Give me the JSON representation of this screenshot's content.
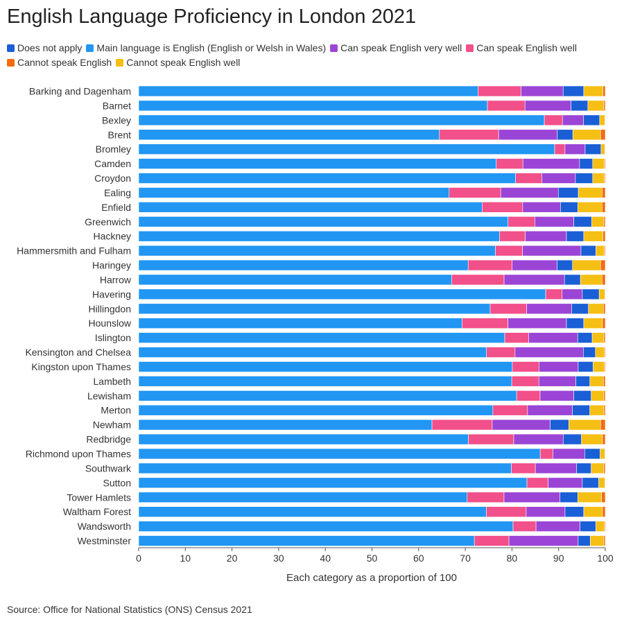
{
  "title": "English Language Proficiency in London 2021",
  "source": "Source: Office for National Statistics (ONS) Census 2021",
  "colors": {
    "text": "#333333",
    "axis": "#555555"
  },
  "chart_data": {
    "type": "bar",
    "orientation": "horizontal",
    "stacked": true,
    "title": "English Language Proficiency in London 2021",
    "xlabel": "Each category as a proportion of 100",
    "ylabel": "",
    "xlim": [
      0,
      100
    ],
    "xticks": [
      0,
      10,
      20,
      30,
      40,
      50,
      60,
      70,
      80,
      90,
      100
    ],
    "grid": false,
    "legend_position": "top",
    "legend_order": [
      "Does not apply",
      "Main language is English (English or Welsh in Wales)",
      "Can speak English very well",
      "Can speak English well",
      "Cannot speak English",
      "Cannot speak English well"
    ],
    "stack_order": [
      "Main language is English (English or Welsh in Wales)",
      "Can speak English well",
      "Can speak English very well",
      "Does not apply",
      "Cannot speak English well",
      "Cannot speak English"
    ],
    "series_colors": {
      "Does not apply": "#1a5fd6",
      "Main language is English (English or Welsh in Wales)": "#2196f3",
      "Can speak English very well": "#9b45d6",
      "Can speak English well": "#f2508a",
      "Cannot speak English": "#f56b0f",
      "Cannot speak English well": "#f5bf14"
    },
    "categories": [
      "Barking and Dagenham",
      "Barnet",
      "Bexley",
      "Brent",
      "Bromley",
      "Camden",
      "Croydon",
      "Ealing",
      "Enfield",
      "Greenwich",
      "Hackney",
      "Hammersmith and Fulham",
      "Haringey",
      "Harrow",
      "Havering",
      "Hillingdon",
      "Hounslow",
      "Islington",
      "Kensington and Chelsea",
      "Kingston upon Thames",
      "Lambeth",
      "Lewisham",
      "Merton",
      "Newham",
      "Redbridge",
      "Richmond upon Thames",
      "Southwark",
      "Sutton",
      "Tower Hamlets",
      "Waltham Forest",
      "Wandsworth",
      "Westminster"
    ],
    "series": [
      {
        "name": "Main language is English (English or Welsh in Wales)",
        "values": [
          72.5,
          74.3,
          87.2,
          64.0,
          88.8,
          76.4,
          80.7,
          66.8,
          73.6,
          78.6,
          77.1,
          76.3,
          70.4,
          66.8,
          86.8,
          75.1,
          69.1,
          78.3,
          74.4,
          80.0,
          79.8,
          80.6,
          75.6,
          62.8,
          70.6,
          85.8,
          79.4,
          82.8,
          70.4,
          74.3,
          80.0,
          71.8
        ]
      },
      {
        "name": "Can speak English well",
        "values": [
          9.2,
          8.0,
          3.9,
          12.6,
          2.2,
          5.7,
          5.6,
          11.1,
          8.7,
          5.7,
          5.5,
          5.8,
          9.4,
          11.2,
          3.5,
          7.8,
          9.8,
          5.1,
          6.1,
          5.7,
          5.8,
          5.0,
          7.4,
          12.9,
          9.7,
          2.7,
          5.1,
          4.5,
          7.9,
          8.5,
          4.9,
          7.4
        ]
      },
      {
        "name": "Can speak English very well",
        "values": [
          9.0,
          9.8,
          4.5,
          12.5,
          4.3,
          12.1,
          7.2,
          12.4,
          8.1,
          8.3,
          8.8,
          12.5,
          9.6,
          12.9,
          4.3,
          9.6,
          12.5,
          10.5,
          14.6,
          8.4,
          7.9,
          7.2,
          9.6,
          12.4,
          10.6,
          6.8,
          8.8,
          7.3,
          12.0,
          8.3,
          9.4,
          14.8
        ]
      },
      {
        "name": "Does not apply",
        "values": [
          4.4,
          3.6,
          3.5,
          3.3,
          3.4,
          2.8,
          3.7,
          4.3,
          3.7,
          3.8,
          3.7,
          3.2,
          3.3,
          3.4,
          3.6,
          3.6,
          3.7,
          3.1,
          2.6,
          3.2,
          3.0,
          3.7,
          3.7,
          4.0,
          3.9,
          3.3,
          3.1,
          3.5,
          3.8,
          4.0,
          3.4,
          2.6
        ]
      },
      {
        "name": "Cannot speak English well",
        "values": [
          4.1,
          3.4,
          1.1,
          5.9,
          0.8,
          2.5,
          2.5,
          5.1,
          5.2,
          2.6,
          4.1,
          1.8,
          6.0,
          4.6,
          1.2,
          3.2,
          4.0,
          2.5,
          1.9,
          2.4,
          2.9,
          2.7,
          3.0,
          6.8,
          4.5,
          1.0,
          2.7,
          1.3,
          5.1,
          4.0,
          1.8,
          2.9
        ]
      },
      {
        "name": "Cannot speak English",
        "values": [
          0.5,
          0.3,
          0.1,
          1.0,
          0.1,
          0.2,
          0.2,
          0.7,
          0.7,
          0.3,
          0.5,
          0.2,
          1.0,
          0.7,
          0.1,
          0.4,
          0.6,
          0.3,
          0.2,
          0.2,
          0.4,
          0.3,
          0.3,
          1.0,
          0.6,
          0.1,
          0.3,
          0.1,
          0.8,
          0.6,
          0.2,
          0.3
        ]
      }
    ]
  }
}
